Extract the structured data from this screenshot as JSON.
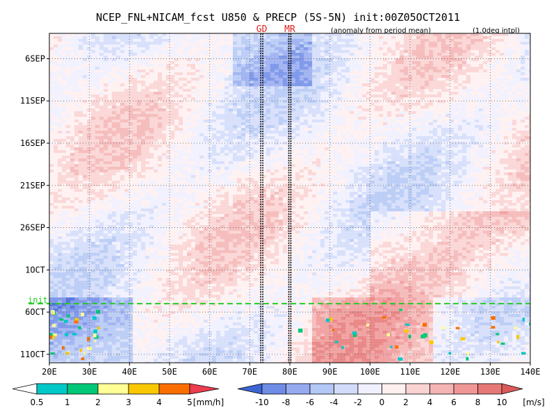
{
  "title": "NCEP_FNL+NICAM_fcst U850 & PRECP (5S-5N) init:00Z05OCT2011",
  "subtitle_left": "(anomaly from period mean)",
  "subtitle_right": "(1.0deg intpl)",
  "markers": [
    {
      "label": "GD",
      "lon": 73,
      "color": "#dd2222"
    },
    {
      "label": "MR",
      "lon": 80,
      "color": "#dd2222"
    }
  ],
  "init_line": {
    "label": "init",
    "color": "#22cc22"
  },
  "chart_data": {
    "type": "heatmap",
    "description_x": "longitude",
    "xlim": [
      20,
      140
    ],
    "x_ticks": [
      "20E",
      "30E",
      "40E",
      "50E",
      "60E",
      "70E",
      "80E",
      "90E",
      "100E",
      "110E",
      "120E",
      "130E",
      "140E"
    ],
    "y_ticks": [
      "6SEP",
      "11SEP",
      "16SEP",
      "21SEP",
      "26SEP",
      "1OCT",
      "6OCT",
      "11OCT"
    ],
    "y_tick_days": [
      6,
      11,
      16,
      21,
      26,
      31,
      36,
      41
    ],
    "ylim_days": [
      3,
      42
    ],
    "init_day": 35,
    "grid": true
  },
  "legend_precip": {
    "unit": "[mm/h]",
    "ticks": [
      "0.5",
      "1",
      "2",
      "3",
      "4",
      "5"
    ],
    "colors": [
      "#ffffff",
      "#00c8c8",
      "#00c878",
      "#ffff96",
      "#fac800",
      "#fa6e00",
      "#ee3c50"
    ]
  },
  "legend_wind": {
    "unit": "[m/s]",
    "ticks": [
      "-10",
      "-8",
      "-6",
      "-4",
      "-2",
      "0",
      "2",
      "4",
      "6",
      "8",
      "10"
    ],
    "colors": [
      "#3c64d2",
      "#6e8ce6",
      "#96aaf0",
      "#b4c8f5",
      "#d2dcfa",
      "#f0f0ff",
      "#fff0f0",
      "#fad2d2",
      "#f5b4b4",
      "#f09696",
      "#e67878",
      "#dc5a5a"
    ]
  }
}
